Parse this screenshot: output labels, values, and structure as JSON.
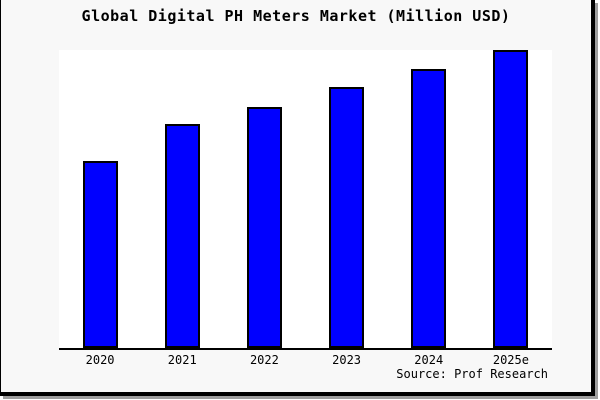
{
  "header": {
    "title": "Global Digital PH Meters Market (Million USD)"
  },
  "footer": {
    "source": "Source: Prof Research"
  },
  "colors": {
    "background": "#f8f8f8",
    "plot_background": "#ffffff",
    "bar_fill": "#0000ff",
    "bar_edge": "#000000",
    "axis": "#000000",
    "frame_border": "#000000",
    "frame_shadow": "#9e9e9e",
    "text": "#000000"
  },
  "chart_data": {
    "type": "bar",
    "title": "Global Digital PH Meters Market (Million USD)",
    "categories": [
      "2020",
      "2021",
      "2022",
      "2023",
      "2024",
      "2025e"
    ],
    "values": [
      62.7,
      75.0,
      81.0,
      87.7,
      93.7,
      100.0
    ],
    "xlabel": "",
    "ylabel": "",
    "ylim": [
      0,
      100
    ],
    "grid": false,
    "legend": false,
    "y_axis_visible": false,
    "source": "Source: Prof Research"
  }
}
